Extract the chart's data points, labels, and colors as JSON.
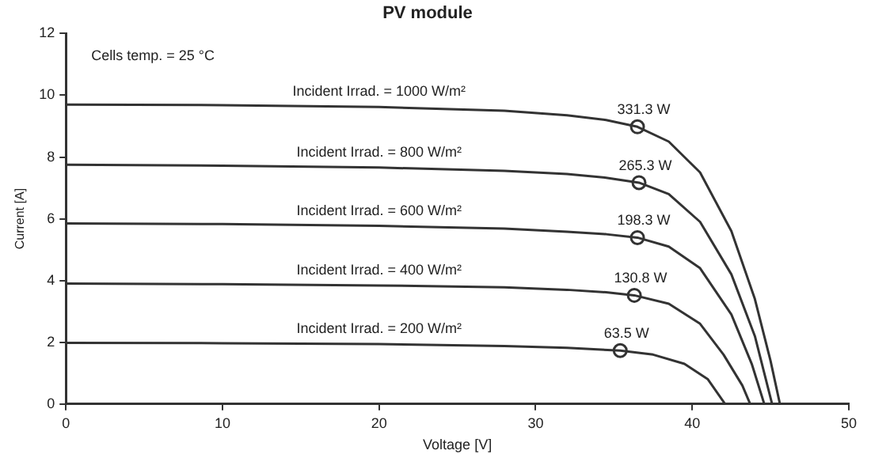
{
  "chart_data": {
    "type": "line",
    "title": "PV module",
    "xlabel": "Voltage [V]",
    "ylabel": "Current [A]",
    "xlim": [
      0,
      50
    ],
    "xticks": [
      0,
      10,
      20,
      30,
      40,
      50
    ],
    "ylim": [
      0,
      12
    ],
    "yticks": [
      0,
      2,
      4,
      6,
      8,
      10,
      12
    ],
    "grid": false,
    "legend": false,
    "marker": "none",
    "line_style": "solid",
    "annotations": [
      "Cells temp. = 25 °C",
      {
        "text": "331.3 W",
        "x": 36.5,
        "y": 8.98
      },
      {
        "text": "265.3 W",
        "x": 36.6,
        "y": 7.17
      },
      {
        "text": "198.3 W",
        "x": 36.5,
        "y": 5.39
      },
      {
        "text": "130.8 W",
        "x": 36.3,
        "y": 3.52
      },
      {
        "text": "63.5 W",
        "x": 35.4,
        "y": 1.73
      }
    ],
    "series": [
      {
        "name": "Incident Irrad. = 1000 W/m²",
        "color": "#333333",
        "x": [
          0,
          10,
          20,
          28,
          32,
          34.5,
          36.5,
          38.5,
          40.5,
          42.5,
          44,
          45,
          45.6
        ],
        "values": [
          9.7,
          9.68,
          9.62,
          9.5,
          9.35,
          9.2,
          8.98,
          8.5,
          7.5,
          5.6,
          3.4,
          1.4,
          0
        ]
      },
      {
        "name": "Incident Irrad. = 800 W/m²",
        "color": "#333333",
        "x": [
          0,
          10,
          20,
          28,
          32,
          34.5,
          36.6,
          38.5,
          40.5,
          42.5,
          44,
          45.1
        ],
        "values": [
          7.75,
          7.72,
          7.66,
          7.55,
          7.45,
          7.33,
          7.17,
          6.8,
          5.9,
          4.2,
          2.2,
          0
        ]
      },
      {
        "name": "Incident Irrad. = 600 W/m²",
        "color": "#333333",
        "x": [
          0,
          10,
          20,
          28,
          32,
          34.5,
          36.5,
          38.5,
          40.5,
          42.5,
          43.8,
          44.6
        ],
        "values": [
          5.85,
          5.83,
          5.77,
          5.68,
          5.58,
          5.5,
          5.39,
          5.1,
          4.4,
          2.9,
          1.3,
          0
        ]
      },
      {
        "name": "Incident Irrad. = 400 W/m²",
        "color": "#333333",
        "x": [
          0,
          10,
          20,
          28,
          32,
          34.5,
          36.3,
          38.5,
          40.5,
          42,
          43.2,
          43.7
        ],
        "values": [
          3.9,
          3.88,
          3.84,
          3.78,
          3.7,
          3.62,
          3.52,
          3.25,
          2.6,
          1.6,
          0.6,
          0
        ]
      },
      {
        "name": "Incident Irrad. = 200 W/m²",
        "color": "#333333",
        "x": [
          0,
          10,
          20,
          28,
          32,
          35.4,
          37.5,
          39.5,
          41,
          42.1
        ],
        "values": [
          1.98,
          1.97,
          1.94,
          1.88,
          1.82,
          1.73,
          1.6,
          1.3,
          0.8,
          0
        ]
      },
      {
        "type": "scatter",
        "marker": "circle",
        "color": "#333333",
        "x": [
          36.5,
          36.6,
          36.5,
          36.3,
          35.4
        ],
        "values": [
          8.98,
          7.17,
          5.39,
          3.52,
          1.73
        ]
      }
    ]
  }
}
